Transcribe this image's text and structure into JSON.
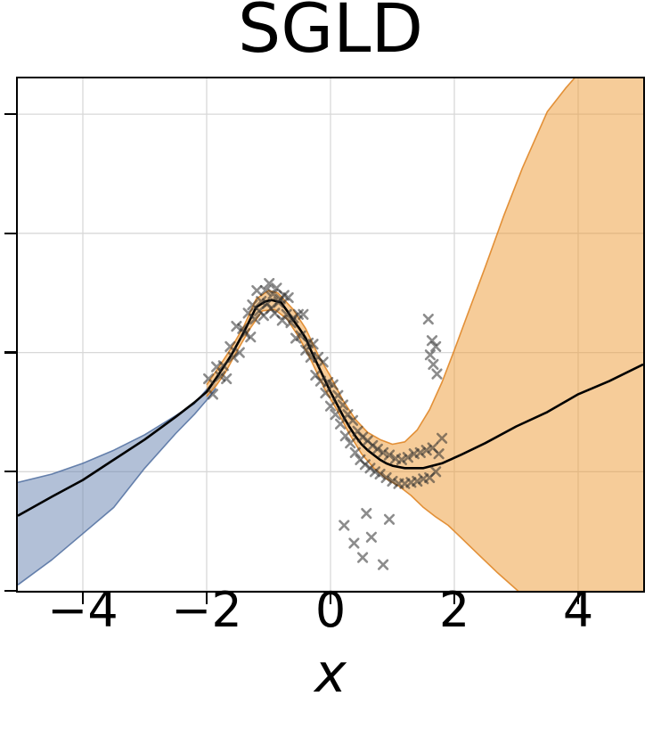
{
  "chart_data": {
    "type": "line",
    "title": "SGLD",
    "xlabel": "x",
    "ylabel": "",
    "xlim": [
      -5.05,
      5.05
    ],
    "ylim": [
      -2.0,
      2.3
    ],
    "xticks": [
      -4,
      -2,
      0,
      2,
      4
    ],
    "xtick_labels": [
      "−4",
      "−2",
      "0",
      "2",
      "4"
    ],
    "yticks": [
      -2,
      -1,
      0,
      1,
      2
    ],
    "ytick_labels": [],
    "grid": true,
    "legend": "none",
    "colors": {
      "grid": "#d8d8d8",
      "spine": "#000000",
      "mean_line": "#000000",
      "band_left_fill": "rgba(101,129,176,0.5)",
      "band_left_edge": "rgba(80,110,160,0.85)",
      "band_right_fill": "rgba(238,154,52,0.5)",
      "band_right_edge": "rgba(222,129,30,0.85)",
      "scatter": "rgba(45,45,45,0.55)"
    },
    "bands": [
      {
        "name": "uncertainty-band-left-blue",
        "fill": "rgba(101,129,176,0.5)",
        "edge": "rgba(80,110,160,0.85)",
        "upper": [
          [
            -5.05,
            -1.09
          ],
          [
            -4.5,
            -1.02
          ],
          [
            -4,
            -0.93
          ],
          [
            -3.5,
            -0.82
          ],
          [
            -3,
            -0.69
          ],
          [
            -2.5,
            -0.53
          ],
          [
            -2.2,
            -0.43
          ],
          [
            -2,
            -0.31
          ],
          [
            -1.85,
            -0.22
          ]
        ],
        "lower": [
          [
            -5.05,
            -1.95
          ],
          [
            -4.5,
            -1.74
          ],
          [
            -4,
            -1.52
          ],
          [
            -3.5,
            -1.3
          ],
          [
            -3,
            -0.97
          ],
          [
            -2.5,
            -0.68
          ],
          [
            -2.2,
            -0.52
          ],
          [
            -2,
            -0.4
          ],
          [
            -1.85,
            -0.3
          ]
        ],
        "corners": []
      },
      {
        "name": "uncertainty-band-right-orange",
        "fill": "rgba(238,154,52,0.5)",
        "edge": "rgba(222,129,30,0.85)",
        "upper": [
          [
            -2,
            -0.27
          ],
          [
            -1.8,
            -0.12
          ],
          [
            -1.6,
            0.04
          ],
          [
            -1.4,
            0.22
          ],
          [
            -1.2,
            0.45
          ],
          [
            -1.0,
            0.52
          ],
          [
            -0.85,
            0.5
          ],
          [
            -0.6,
            0.36
          ],
          [
            -0.4,
            0.2
          ],
          [
            -0.2,
            -0.02
          ],
          [
            0,
            -0.2
          ],
          [
            0.2,
            -0.4
          ],
          [
            0.4,
            -0.56
          ],
          [
            0.6,
            -0.67
          ],
          [
            0.8,
            -0.73
          ],
          [
            1.0,
            -0.77
          ],
          [
            1.2,
            -0.75
          ],
          [
            1.4,
            -0.65
          ],
          [
            1.6,
            -0.48
          ],
          [
            1.8,
            -0.25
          ],
          [
            2.0,
            0.02
          ],
          [
            2.2,
            0.3
          ],
          [
            2.5,
            0.72
          ],
          [
            2.8,
            1.15
          ],
          [
            3.1,
            1.55
          ],
          [
            3.5,
            2.02
          ],
          [
            3.8,
            2.22
          ],
          [
            3.97,
            2.32
          ]
        ],
        "lower": [
          [
            -2,
            -0.37
          ],
          [
            -1.85,
            -0.28
          ],
          [
            -1.7,
            -0.17
          ],
          [
            -1.5,
            0.02
          ],
          [
            -1.3,
            0.2
          ],
          [
            -1.1,
            0.35
          ],
          [
            -0.9,
            0.36
          ],
          [
            -0.7,
            0.28
          ],
          [
            -0.5,
            0.12
          ],
          [
            -0.3,
            -0.08
          ],
          [
            -0.1,
            -0.3
          ],
          [
            0.1,
            -0.48
          ],
          [
            0.3,
            -0.68
          ],
          [
            0.5,
            -0.85
          ],
          [
            0.7,
            -0.97
          ],
          [
            0.9,
            -1.06
          ],
          [
            1.1,
            -1.12
          ],
          [
            1.3,
            -1.2
          ],
          [
            1.5,
            -1.3
          ],
          [
            1.7,
            -1.38
          ],
          [
            1.9,
            -1.45
          ],
          [
            2.1,
            -1.55
          ],
          [
            2.4,
            -1.7
          ],
          [
            2.7,
            -1.85
          ],
          [
            3.07,
            -2.02
          ]
        ],
        "corners": [
          [
            5.05,
            2.32
          ],
          [
            5.05,
            -2.02
          ]
        ]
      }
    ],
    "mean_curve": {
      "name": "predictive-mean-curve",
      "color": "#000000",
      "points": [
        [
          -5.05,
          -1.37
        ],
        [
          -4.5,
          -1.21
        ],
        [
          -4,
          -1.07
        ],
        [
          -3.5,
          -0.9
        ],
        [
          -3,
          -0.73
        ],
        [
          -2.5,
          -0.54
        ],
        [
          -2.2,
          -0.42
        ],
        [
          -2,
          -0.33
        ],
        [
          -1.8,
          -0.18
        ],
        [
          -1.6,
          -0.02
        ],
        [
          -1.4,
          0.17
        ],
        [
          -1.2,
          0.38
        ],
        [
          -1.05,
          0.43
        ],
        [
          -0.95,
          0.44
        ],
        [
          -0.8,
          0.42
        ],
        [
          -0.7,
          0.35
        ],
        [
          -0.6,
          0.27
        ],
        [
          -0.5,
          0.2
        ],
        [
          -0.4,
          0.12
        ],
        [
          -0.3,
          0.0
        ],
        [
          -0.2,
          -0.11
        ],
        [
          -0.1,
          -0.22
        ],
        [
          0,
          -0.33
        ],
        [
          0.1,
          -0.43
        ],
        [
          0.2,
          -0.53
        ],
        [
          0.3,
          -0.62
        ],
        [
          0.4,
          -0.7
        ],
        [
          0.5,
          -0.77
        ],
        [
          0.6,
          -0.82
        ],
        [
          0.7,
          -0.86
        ],
        [
          0.8,
          -0.9
        ],
        [
          0.9,
          -0.93
        ],
        [
          1.0,
          -0.95
        ],
        [
          1.2,
          -0.97
        ],
        [
          1.5,
          -0.97
        ],
        [
          1.8,
          -0.93
        ],
        [
          2.1,
          -0.86
        ],
        [
          2.5,
          -0.76
        ],
        [
          3.0,
          -0.62
        ],
        [
          3.5,
          -0.5
        ],
        [
          4.0,
          -0.35
        ],
        [
          4.5,
          -0.24
        ],
        [
          5.05,
          -0.1
        ]
      ]
    },
    "scatter": {
      "name": "training-observations",
      "marker": "x",
      "color": "rgba(45,45,45,0.55)",
      "points": [
        [
          -1.97,
          -0.22
        ],
        [
          -1.9,
          -0.35
        ],
        [
          -1.84,
          -0.12
        ],
        [
          -1.78,
          -0.2
        ],
        [
          -1.73,
          -0.11
        ],
        [
          -1.68,
          -0.22
        ],
        [
          -1.62,
          0.05
        ],
        [
          -1.57,
          -0.04
        ],
        [
          -1.52,
          0.22
        ],
        [
          -1.47,
          0.0
        ],
        [
          -1.42,
          0.2
        ],
        [
          -1.38,
          0.16
        ],
        [
          -1.33,
          0.33
        ],
        [
          -1.29,
          0.13
        ],
        [
          -1.26,
          0.4
        ],
        [
          -1.22,
          0.28
        ],
        [
          -1.19,
          0.52
        ],
        [
          -1.15,
          0.35
        ],
        [
          -1.12,
          0.43
        ],
        [
          -1.08,
          0.31
        ],
        [
          -1.05,
          0.52
        ],
        [
          -1.02,
          0.41
        ],
        [
          -0.99,
          0.58
        ],
        [
          -0.96,
          0.37
        ],
        [
          -0.93,
          0.49
        ],
        [
          -0.9,
          0.33
        ],
        [
          -0.87,
          0.54
        ],
        [
          -0.84,
          0.42
        ],
        [
          -0.81,
          0.45
        ],
        [
          -0.78,
          0.27
        ],
        [
          -0.75,
          0.48
        ],
        [
          -0.71,
          0.32
        ],
        [
          -0.68,
          0.46
        ],
        [
          -0.64,
          0.25
        ],
        [
          -0.6,
          0.29
        ],
        [
          -0.56,
          0.12
        ],
        [
          -0.52,
          0.32
        ],
        [
          -0.48,
          0.14
        ],
        [
          -0.44,
          0.32
        ],
        [
          -0.4,
          0.02
        ],
        [
          -0.36,
          0.08
        ],
        [
          -0.32,
          -0.04
        ],
        [
          -0.28,
          0.07
        ],
        [
          -0.24,
          -0.19
        ],
        [
          -0.2,
          -0.04
        ],
        [
          -0.16,
          -0.24
        ],
        [
          -0.12,
          -0.08
        ],
        [
          -0.08,
          -0.34
        ],
        [
          -0.04,
          -0.25
        ],
        [
          0.0,
          -0.45
        ],
        [
          0.04,
          -0.27
        ],
        [
          0.08,
          -0.52
        ],
        [
          0.12,
          -0.36
        ],
        [
          0.16,
          -0.6
        ],
        [
          0.2,
          -0.44
        ],
        [
          0.24,
          -0.7
        ],
        [
          0.28,
          -0.52
        ],
        [
          0.32,
          -0.76
        ],
        [
          0.36,
          -0.57
        ],
        [
          0.4,
          -0.84
        ],
        [
          0.44,
          -0.66
        ],
        [
          0.48,
          -0.9
        ],
        [
          0.52,
          -0.71
        ],
        [
          0.56,
          -0.94
        ],
        [
          0.6,
          -0.74
        ],
        [
          0.64,
          -0.97
        ],
        [
          0.68,
          -0.78
        ],
        [
          0.72,
          -1.0
        ],
        [
          0.76,
          -0.81
        ],
        [
          0.8,
          -1.02
        ],
        [
          0.85,
          -0.84
        ],
        [
          0.9,
          -1.05
        ],
        [
          0.95,
          -0.86
        ],
        [
          1.0,
          -1.08
        ],
        [
          1.05,
          -0.89
        ],
        [
          1.1,
          -1.1
        ],
        [
          1.15,
          -0.9
        ],
        [
          1.2,
          -1.1
        ],
        [
          1.25,
          -0.88
        ],
        [
          1.3,
          -1.09
        ],
        [
          1.35,
          -0.85
        ],
        [
          1.4,
          -1.08
        ],
        [
          1.45,
          -0.84
        ],
        [
          1.5,
          -1.06
        ],
        [
          1.55,
          -0.82
        ],
        [
          1.6,
          -1.05
        ],
        [
          1.65,
          -0.8
        ],
        [
          1.7,
          -1.0
        ],
        [
          1.75,
          -0.85
        ],
        [
          1.8,
          -0.72
        ],
        [
          1.58,
          0.28
        ],
        [
          1.64,
          0.1
        ],
        [
          1.7,
          0.05
        ],
        [
          1.66,
          -0.1
        ],
        [
          1.72,
          -0.18
        ],
        [
          1.61,
          -0.02
        ],
        [
          0.22,
          -1.45
        ],
        [
          0.38,
          -1.6
        ],
        [
          0.52,
          -1.72
        ],
        [
          0.66,
          -1.55
        ],
        [
          0.85,
          -1.78
        ],
        [
          0.95,
          -1.4
        ],
        [
          0.58,
          -1.35
        ]
      ]
    }
  }
}
